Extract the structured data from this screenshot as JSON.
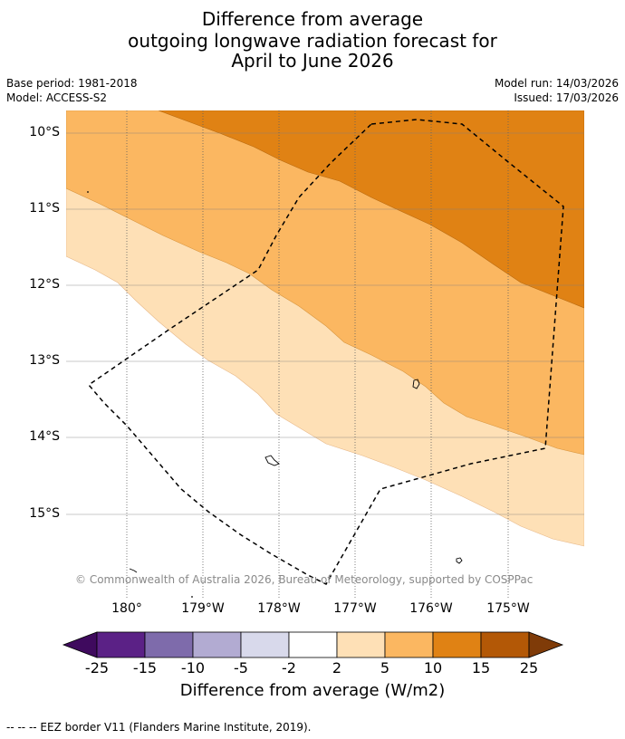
{
  "title": {
    "line1": "Difference from average",
    "line2": "outgoing longwave radiation forecast for",
    "line3": "April to June 2026"
  },
  "meta": {
    "base_period": "Base period: 1981-2018",
    "model": "Model: ACCESS-S2",
    "model_run": "Model run: 14/03/2026",
    "issued": "Issued: 17/03/2026"
  },
  "map": {
    "lat_labels": [
      "10°S",
      "11°S",
      "12°S",
      "13°S",
      "14°S",
      "15°S"
    ],
    "lon_labels": [
      "180°",
      "179°W",
      "178°W",
      "177°W",
      "176°W",
      "175°W"
    ],
    "copyright": "© Commonwealth of Australia 2026, Bureau of Meteorology, supported by COSPPac"
  },
  "colorbar": {
    "ticks": [
      "-25",
      "-15",
      "-10",
      "-5",
      "-2",
      "2",
      "5",
      "10",
      "15",
      "25"
    ],
    "colors": [
      "#3f0a5e",
      "#5b2186",
      "#7e6bab",
      "#b2abd2",
      "#d8d9eb",
      "#ffffff",
      "#fee0b6",
      "#fbb761",
      "#e08214",
      "#b35806",
      "#7f3b08"
    ],
    "label": "Difference from average (W/m2)"
  },
  "legend": {
    "eez": "--  --  -- EEZ border V11 (Flanders Marine Institute, 2019)."
  }
}
